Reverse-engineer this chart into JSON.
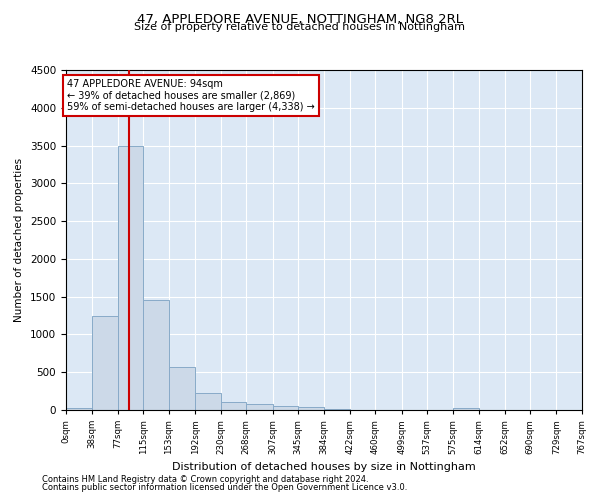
{
  "title": "47, APPLEDORE AVENUE, NOTTINGHAM, NG8 2RL",
  "subtitle": "Size of property relative to detached houses in Nottingham",
  "xlabel": "Distribution of detached houses by size in Nottingham",
  "ylabel": "Number of detached properties",
  "property_size": 94,
  "bar_edges": [
    0,
    38,
    77,
    115,
    153,
    192,
    230,
    268,
    307,
    345,
    384,
    422,
    460,
    499,
    537,
    575,
    614,
    652,
    690,
    729,
    767
  ],
  "bar_heights": [
    30,
    1250,
    3500,
    1450,
    570,
    220,
    110,
    75,
    55,
    40,
    10,
    0,
    0,
    0,
    0,
    30,
    0,
    0,
    0,
    0
  ],
  "bar_color": "#ccd9e8",
  "bar_edge_color": "#88aac8",
  "redline_color": "#cc0000",
  "annotation_line1": "47 APPLEDORE AVENUE: 94sqm",
  "annotation_line2": "← 39% of detached houses are smaller (2,869)",
  "annotation_line3": "59% of semi-detached houses are larger (4,338) →",
  "annotation_box_color": "#ffffff",
  "annotation_box_edge": "#cc0000",
  "ylim": [
    0,
    4500
  ],
  "yticks": [
    0,
    500,
    1000,
    1500,
    2000,
    2500,
    3000,
    3500,
    4000,
    4500
  ],
  "bg_color": "#dce8f5",
  "footnote1": "Contains HM Land Registry data © Crown copyright and database right 2024.",
  "footnote2": "Contains public sector information licensed under the Open Government Licence v3.0."
}
